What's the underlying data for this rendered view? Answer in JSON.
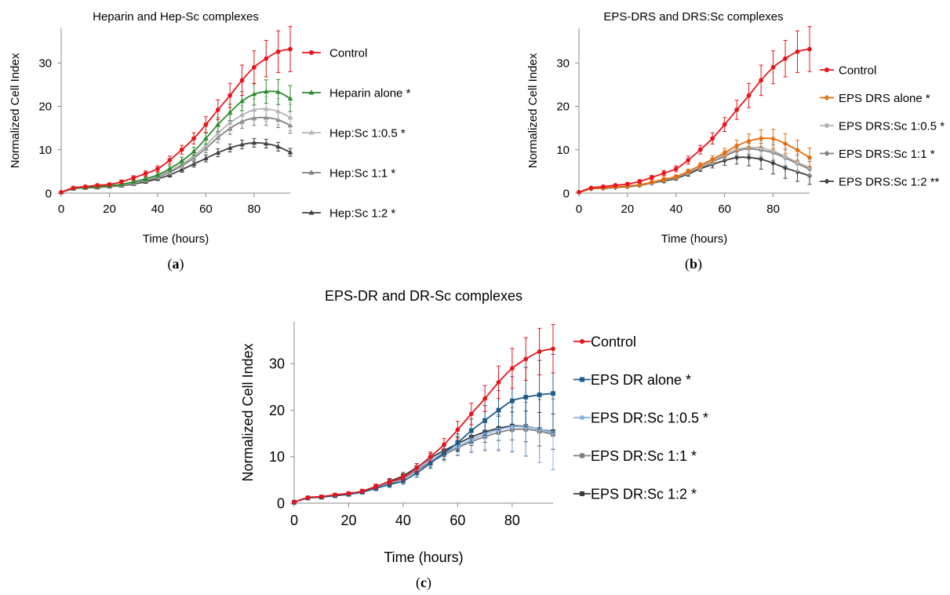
{
  "figure": {
    "panels": [
      {
        "label_open": "(",
        "label_letter": "a",
        "label_close": ")"
      },
      {
        "label_open": "(",
        "label_letter": "b",
        "label_close": ")"
      },
      {
        "label_open": "(",
        "label_letter": "c",
        "label_close": ")"
      }
    ]
  },
  "chart_data": [
    {
      "type": "line",
      "title": "Heparin and Hep-Sc complexes",
      "xlabel": "Time (hours)",
      "ylabel": "Normalized Cell Index",
      "xlim": [
        0,
        95
      ],
      "ylim": [
        0,
        38
      ],
      "xticks": [
        0,
        20,
        40,
        60,
        80
      ],
      "yticks": [
        0,
        10,
        20,
        30
      ],
      "legend_position": "right",
      "x": [
        0,
        5,
        10,
        15,
        20,
        25,
        30,
        35,
        40,
        45,
        50,
        55,
        60,
        65,
        70,
        75,
        80,
        85,
        90,
        95
      ],
      "series": [
        {
          "name": "Control",
          "color": "#e8141b",
          "marker": "circle",
          "values": [
            0.2,
            1.2,
            1.5,
            1.8,
            2.0,
            2.6,
            3.5,
            4.5,
            5.6,
            7.6,
            10.0,
            12.6,
            15.8,
            19.2,
            22.5,
            26.0,
            29.0,
            31.0,
            32.6,
            33.2
          ],
          "error": [
            0.1,
            0.2,
            0.2,
            0.3,
            0.3,
            0.4,
            0.5,
            0.6,
            0.7,
            0.9,
            1.0,
            1.3,
            1.8,
            2.3,
            2.8,
            3.5,
            3.8,
            4.2,
            4.8,
            5.2
          ]
        },
        {
          "name": "Heparin alone *",
          "color": "#2e8b2e",
          "marker": "triangle",
          "values": [
            0.2,
            1.1,
            1.3,
            1.5,
            1.7,
            2.0,
            2.6,
            3.3,
            4.2,
            5.6,
            7.4,
            9.6,
            12.6,
            15.8,
            18.6,
            21.2,
            22.8,
            23.4,
            23.3,
            21.8
          ],
          "error": [
            0.1,
            0.2,
            0.2,
            0.2,
            0.3,
            0.3,
            0.4,
            0.5,
            0.6,
            0.7,
            0.9,
            1.0,
            1.3,
            1.6,
            1.9,
            2.2,
            2.5,
            2.7,
            2.9,
            3.0
          ]
        },
        {
          "name": "Hep:Sc 1:0.5 *",
          "color": "#b4b4b4",
          "marker": "triangle",
          "values": [
            0.2,
            1.1,
            1.3,
            1.5,
            1.6,
            1.9,
            2.4,
            3.1,
            3.9,
            5.1,
            6.7,
            8.6,
            11.0,
            13.8,
            16.2,
            18.0,
            19.2,
            19.4,
            18.8,
            17.4
          ],
          "error": [
            0.1,
            0.2,
            0.2,
            0.2,
            0.3,
            0.3,
            0.4,
            0.4,
            0.5,
            0.6,
            0.8,
            0.9,
            1.2,
            1.5,
            1.8,
            2.1,
            2.5,
            2.8,
            3.0,
            3.0
          ]
        },
        {
          "name": "Hep:Sc 1:1 *",
          "color": "#7f7f7f",
          "marker": "triangle",
          "values": [
            0.2,
            1.1,
            1.3,
            1.4,
            1.6,
            1.8,
            2.3,
            2.9,
            3.7,
            4.8,
            6.3,
            8.1,
            10.3,
            12.8,
            14.9,
            16.5,
            17.3,
            17.4,
            16.9,
            15.6
          ],
          "error": [
            0.1,
            0.2,
            0.2,
            0.2,
            0.3,
            0.3,
            0.3,
            0.4,
            0.5,
            0.6,
            0.7,
            0.8,
            1.0,
            1.2,
            1.4,
            1.6,
            1.7,
            1.8,
            1.8,
            1.8
          ]
        },
        {
          "name": "Hep:Sc 1:2 *",
          "color": "#404040",
          "marker": "triangle",
          "values": [
            0.2,
            1.0,
            1.2,
            1.3,
            1.5,
            1.7,
            2.1,
            2.6,
            3.3,
            4.2,
            5.4,
            6.7,
            8.0,
            9.3,
            10.4,
            11.2,
            11.6,
            11.4,
            10.7,
            9.4
          ],
          "error": [
            0.1,
            0.2,
            0.2,
            0.2,
            0.2,
            0.3,
            0.3,
            0.3,
            0.4,
            0.5,
            0.6,
            0.7,
            0.8,
            0.9,
            0.9,
            1.0,
            1.0,
            1.0,
            1.0,
            0.9
          ]
        }
      ]
    },
    {
      "type": "line",
      "title": "EPS-DRS and DRS:Sc complexes",
      "xlabel": "Time (hours)",
      "ylabel": "Normalized Cell Index",
      "xlim": [
        0,
        95
      ],
      "ylim": [
        0,
        38
      ],
      "xticks": [
        0,
        20,
        40,
        60,
        80
      ],
      "yticks": [
        0,
        10,
        20,
        30
      ],
      "legend_position": "right",
      "x": [
        0,
        5,
        10,
        15,
        20,
        25,
        30,
        35,
        40,
        45,
        50,
        55,
        60,
        65,
        70,
        75,
        80,
        85,
        90,
        95
      ],
      "series": [
        {
          "name": "Control",
          "color": "#e8141b",
          "marker": "circle",
          "values": [
            0.2,
            1.2,
            1.5,
            1.8,
            2.1,
            2.7,
            3.6,
            4.6,
            5.6,
            7.6,
            10.0,
            12.6,
            15.8,
            19.2,
            22.5,
            26.0,
            29.0,
            31.0,
            32.6,
            33.2
          ],
          "error": [
            0.1,
            0.2,
            0.2,
            0.3,
            0.3,
            0.4,
            0.5,
            0.6,
            0.7,
            0.9,
            1.0,
            1.3,
            1.6,
            2.2,
            2.8,
            3.5,
            3.8,
            4.2,
            4.8,
            5.2
          ]
        },
        {
          "name": "EPS DRS alone *",
          "color": "#e46c0a",
          "marker": "diamond",
          "values": [
            0.2,
            1.0,
            1.2,
            1.4,
            1.6,
            1.9,
            2.5,
            3.2,
            3.8,
            5.0,
            6.4,
            7.8,
            9.3,
            10.9,
            12.0,
            12.6,
            12.5,
            11.4,
            9.9,
            8.2
          ],
          "error": [
            0.1,
            0.2,
            0.2,
            0.2,
            0.3,
            0.3,
            0.3,
            0.4,
            0.4,
            0.5,
            0.6,
            0.8,
            1.0,
            1.3,
            1.6,
            2.0,
            2.2,
            2.3,
            2.3,
            2.2
          ]
        },
        {
          "name": "EPS DRS:Sc 1:0.5 *",
          "color": "#b4b4b4",
          "marker": "circle",
          "values": [
            0.2,
            1.0,
            1.2,
            1.4,
            1.6,
            1.9,
            2.4,
            3.1,
            3.7,
            4.8,
            6.1,
            7.4,
            8.9,
            10.1,
            10.5,
            10.4,
            9.7,
            8.4,
            7.1,
            5.9
          ],
          "error": [
            0.1,
            0.2,
            0.2,
            0.2,
            0.3,
            0.3,
            0.3,
            0.4,
            0.4,
            0.5,
            0.6,
            0.7,
            0.9,
            1.1,
            1.4,
            1.7,
            1.9,
            2.0,
            2.0,
            1.9
          ]
        },
        {
          "name": "EPS DRS:Sc 1:1 *",
          "color": "#7f7f7f",
          "marker": "diamond",
          "values": [
            0.2,
            1.0,
            1.2,
            1.4,
            1.6,
            1.9,
            2.4,
            3.0,
            3.6,
            4.7,
            5.9,
            7.2,
            8.5,
            9.7,
            10.2,
            9.9,
            9.3,
            8.1,
            6.8,
            5.5
          ],
          "error": [
            0.1,
            0.2,
            0.2,
            0.2,
            0.3,
            0.3,
            0.3,
            0.4,
            0.4,
            0.5,
            0.6,
            0.7,
            0.9,
            1.1,
            1.3,
            1.6,
            1.8,
            1.9,
            1.9,
            1.8
          ]
        },
        {
          "name": "EPS DRS:Sc 1:2 **",
          "color": "#404040",
          "marker": "diamond",
          "values": [
            0.2,
            1.0,
            1.1,
            1.3,
            1.5,
            1.8,
            2.3,
            2.8,
            3.4,
            4.4,
            5.6,
            6.6,
            7.5,
            8.2,
            8.2,
            7.8,
            6.9,
            5.8,
            4.9,
            4.0
          ],
          "error": [
            0.1,
            0.2,
            0.2,
            0.2,
            0.3,
            0.3,
            0.3,
            0.4,
            0.4,
            0.5,
            0.6,
            0.8,
            1.1,
            1.5,
            1.9,
            2.3,
            2.5,
            2.4,
            2.2,
            2.0
          ]
        }
      ]
    },
    {
      "type": "line",
      "title": "EPS-DR and DR-Sc complexes",
      "xlabel": "Time (hours)",
      "ylabel": "Normalized Cell Index",
      "xlim": [
        0,
        95
      ],
      "ylim": [
        0,
        39
      ],
      "xticks": [
        0,
        20,
        40,
        60,
        80
      ],
      "yticks": [
        0,
        10,
        20,
        30
      ],
      "legend_position": "right",
      "x": [
        0,
        5,
        10,
        15,
        20,
        25,
        30,
        35,
        40,
        45,
        50,
        55,
        60,
        65,
        70,
        75,
        80,
        85,
        90,
        95
      ],
      "series": [
        {
          "name": "Control",
          "color": "#e8141b",
          "marker": "circle",
          "values": [
            0.2,
            1.2,
            1.4,
            1.8,
            2.1,
            2.6,
            3.6,
            4.6,
            5.6,
            7.6,
            10.0,
            12.6,
            15.8,
            19.2,
            22.5,
            26.0,
            29.0,
            31.0,
            32.6,
            33.2
          ],
          "error": [
            0.1,
            0.2,
            0.2,
            0.3,
            0.3,
            0.4,
            0.5,
            0.6,
            0.7,
            0.9,
            1.0,
            1.3,
            1.8,
            2.3,
            2.8,
            3.5,
            4.3,
            4.6,
            5.0,
            5.2
          ]
        },
        {
          "name": "EPS DR alone *",
          "color": "#1f5c8b",
          "marker": "square",
          "values": [
            0.2,
            1.1,
            1.3,
            1.6,
            1.9,
            2.4,
            3.2,
            4.0,
            4.8,
            6.5,
            8.6,
            10.8,
            13.0,
            15.6,
            17.8,
            20.0,
            22.0,
            22.8,
            23.3,
            23.6
          ],
          "error": [
            0.1,
            0.2,
            0.2,
            0.3,
            0.3,
            0.4,
            0.5,
            0.6,
            0.7,
            0.9,
            1.1,
            1.4,
            1.9,
            2.5,
            3.2,
            4.2,
            5.2,
            6.4,
            7.4,
            8.4
          ]
        },
        {
          "name": "EPS DR:Sc 1:0.5 *",
          "color": "#8db3e2",
          "marker": "circle",
          "values": [
            0.2,
            1.1,
            1.3,
            1.6,
            1.9,
            2.4,
            3.3,
            4.4,
            5.6,
            7.3,
            9.2,
            10.8,
            12.2,
            13.6,
            14.8,
            15.8,
            16.4,
            16.4,
            15.9,
            15.2
          ],
          "error": [
            0.1,
            0.2,
            0.2,
            0.3,
            0.3,
            0.4,
            0.5,
            0.6,
            0.7,
            0.8,
            1.0,
            1.3,
            1.8,
            2.4,
            3.2,
            4.2,
            5.2,
            6.2,
            7.2,
            8.0
          ]
        },
        {
          "name": "EPS DR:Sc 1:1 *",
          "color": "#7f7f7f",
          "marker": "square",
          "values": [
            0.2,
            1.1,
            1.3,
            1.6,
            1.9,
            2.4,
            3.2,
            4.2,
            5.3,
            7.0,
            8.8,
            10.4,
            11.9,
            13.2,
            14.3,
            15.2,
            15.8,
            15.9,
            15.5,
            14.8
          ],
          "error": [
            0.1,
            0.2,
            0.2,
            0.3,
            0.3,
            0.4,
            0.5,
            0.6,
            0.7,
            0.8,
            1.0,
            1.3,
            1.7,
            2.3,
            3.0,
            3.9,
            4.8,
            5.8,
            6.8,
            7.6
          ]
        },
        {
          "name": "EPS DR:Sc 1:2 *",
          "color": "#3b3b3b",
          "marker": "square",
          "values": [
            0.2,
            1.1,
            1.3,
            1.7,
            2.0,
            2.5,
            3.5,
            4.7,
            5.9,
            7.7,
            9.7,
            11.3,
            12.8,
            14.2,
            15.3,
            16.1,
            16.6,
            16.5,
            15.9,
            15.4
          ],
          "error": [
            0.1,
            0.2,
            0.2,
            0.3,
            0.3,
            0.4,
            0.5,
            0.6,
            0.7,
            0.8,
            1.0,
            1.2,
            1.5,
            1.8,
            2.2,
            2.6,
            3.0,
            3.3,
            3.6,
            3.8
          ]
        }
      ]
    }
  ]
}
